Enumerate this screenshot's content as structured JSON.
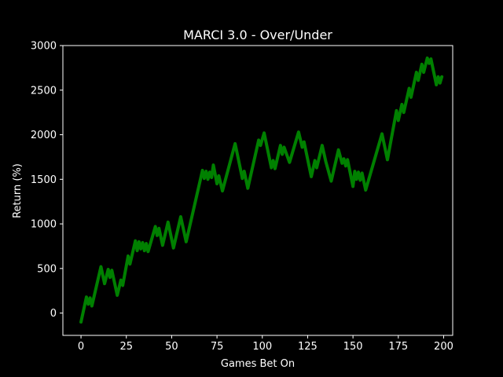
{
  "chart_data": {
    "type": "line",
    "title": "MARCI 3.0 - Over/Under",
    "xlabel": "Games Bet On",
    "ylabel": "Return (%)",
    "xlim": [
      -10,
      205
    ],
    "ylim": [
      -250,
      3000
    ],
    "xticks": [
      0,
      25,
      50,
      75,
      100,
      125,
      150,
      175,
      200
    ],
    "yticks": [
      0,
      500,
      1000,
      1500,
      2000,
      2500,
      3000
    ],
    "grid": false,
    "background": "#000000",
    "foreground": "#ffffff",
    "series": [
      {
        "color": "#008000",
        "points": [
          [
            0,
            -100
          ],
          [
            3,
            180
          ],
          [
            4,
            100
          ],
          [
            5,
            170
          ],
          [
            6,
            80
          ],
          [
            11,
            520
          ],
          [
            13,
            330
          ],
          [
            15,
            490
          ],
          [
            16,
            400
          ],
          [
            17,
            480
          ],
          [
            20,
            200
          ],
          [
            22,
            370
          ],
          [
            23,
            310
          ],
          [
            26,
            640
          ],
          [
            27,
            550
          ],
          [
            30,
            810
          ],
          [
            31,
            700
          ],
          [
            32,
            800
          ],
          [
            33,
            720
          ],
          [
            34,
            790
          ],
          [
            35,
            700
          ],
          [
            36,
            780
          ],
          [
            37,
            690
          ],
          [
            41,
            970
          ],
          [
            42,
            870
          ],
          [
            43,
            950
          ],
          [
            45,
            760
          ],
          [
            48,
            1020
          ],
          [
            51,
            730
          ],
          [
            55,
            1080
          ],
          [
            58,
            800
          ],
          [
            67,
            1600
          ],
          [
            68,
            1510
          ],
          [
            69,
            1590
          ],
          [
            70,
            1500
          ],
          [
            71,
            1580
          ],
          [
            72,
            1520
          ],
          [
            73,
            1660
          ],
          [
            75,
            1450
          ],
          [
            76,
            1540
          ],
          [
            78,
            1370
          ],
          [
            85,
            1900
          ],
          [
            89,
            1510
          ],
          [
            90,
            1590
          ],
          [
            92,
            1400
          ],
          [
            98,
            1940
          ],
          [
            99,
            1880
          ],
          [
            101,
            2020
          ],
          [
            105,
            1630
          ],
          [
            106,
            1710
          ],
          [
            107,
            1620
          ],
          [
            110,
            1880
          ],
          [
            111,
            1780
          ],
          [
            112,
            1860
          ],
          [
            115,
            1690
          ],
          [
            120,
            2030
          ],
          [
            122,
            1860
          ],
          [
            123,
            1920
          ],
          [
            127,
            1530
          ],
          [
            129,
            1710
          ],
          [
            130,
            1630
          ],
          [
            133,
            1880
          ],
          [
            135,
            1700
          ],
          [
            138,
            1480
          ],
          [
            142,
            1830
          ],
          [
            144,
            1680
          ],
          [
            145,
            1730
          ],
          [
            146,
            1650
          ],
          [
            147,
            1720
          ],
          [
            150,
            1420
          ],
          [
            151,
            1590
          ],
          [
            152,
            1500
          ],
          [
            153,
            1580
          ],
          [
            154,
            1490
          ],
          [
            155,
            1570
          ],
          [
            157,
            1380
          ],
          [
            166,
            2010
          ],
          [
            169,
            1720
          ],
          [
            174,
            2270
          ],
          [
            175,
            2160
          ],
          [
            177,
            2340
          ],
          [
            178,
            2250
          ],
          [
            181,
            2520
          ],
          [
            182,
            2420
          ],
          [
            185,
            2700
          ],
          [
            186,
            2610
          ],
          [
            188,
            2790
          ],
          [
            189,
            2700
          ],
          [
            191,
            2860
          ],
          [
            192,
            2800
          ],
          [
            193,
            2850
          ],
          [
            196,
            2560
          ],
          [
            197,
            2650
          ],
          [
            198,
            2580
          ],
          [
            199,
            2650
          ]
        ]
      }
    ]
  }
}
